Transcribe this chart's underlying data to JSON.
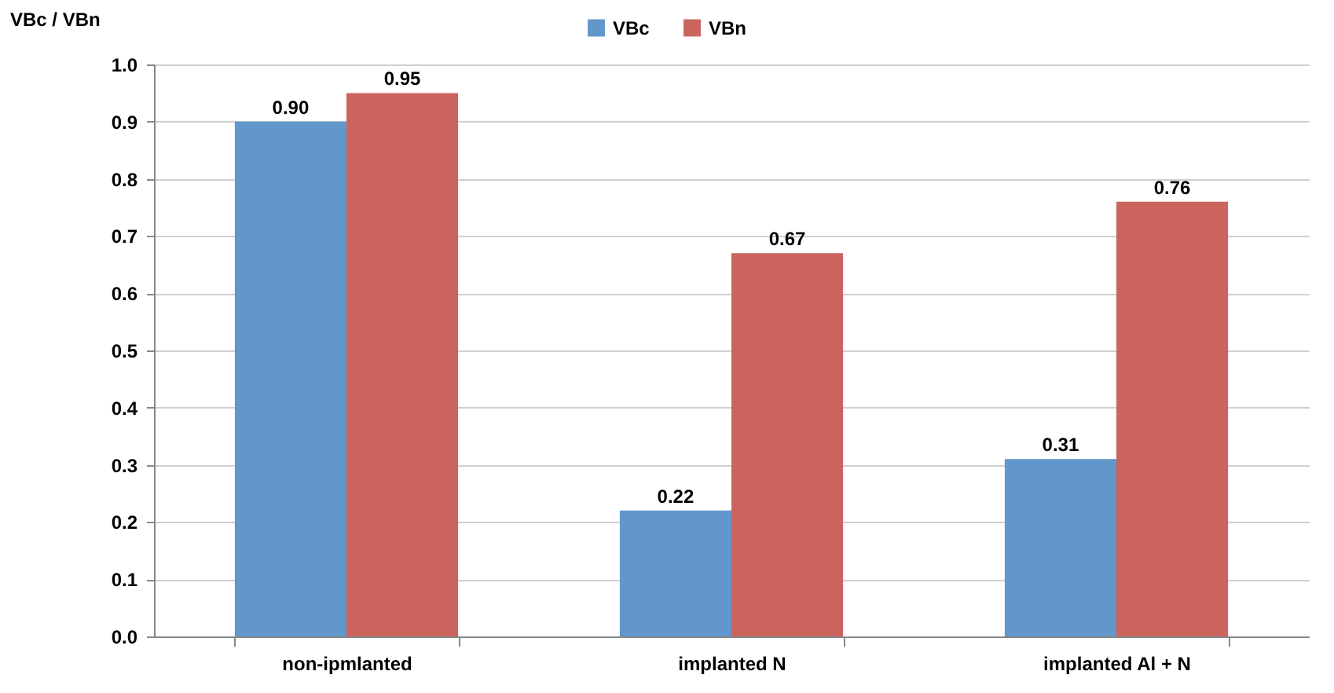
{
  "chart_data": {
    "type": "bar",
    "ylabel": "VBc / VBn",
    "categories": [
      "non-ipmlanted",
      "implanted N",
      "implanted Al + N"
    ],
    "series": [
      {
        "name": "VBc",
        "color": "#6197cb",
        "values": [
          0.9,
          0.22,
          0.31
        ],
        "value_labels": [
          "0.90",
          "0.22",
          "0.31"
        ]
      },
      {
        "name": "VBn",
        "color": "#cc645e",
        "values": [
          0.95,
          0.67,
          0.76
        ],
        "value_labels": [
          "0.95",
          "0.67",
          "0.76"
        ]
      }
    ],
    "ylim": [
      0,
      1.0
    ],
    "yticks": [
      {
        "value": 0,
        "label": "0.0"
      },
      0.1,
      0.2,
      0.3,
      0.4,
      0.5,
      0.6,
      0.7,
      0.8,
      0.9,
      {
        "value": 1,
        "label": "1.0"
      }
    ],
    "grid": "y",
    "legend": "top"
  }
}
